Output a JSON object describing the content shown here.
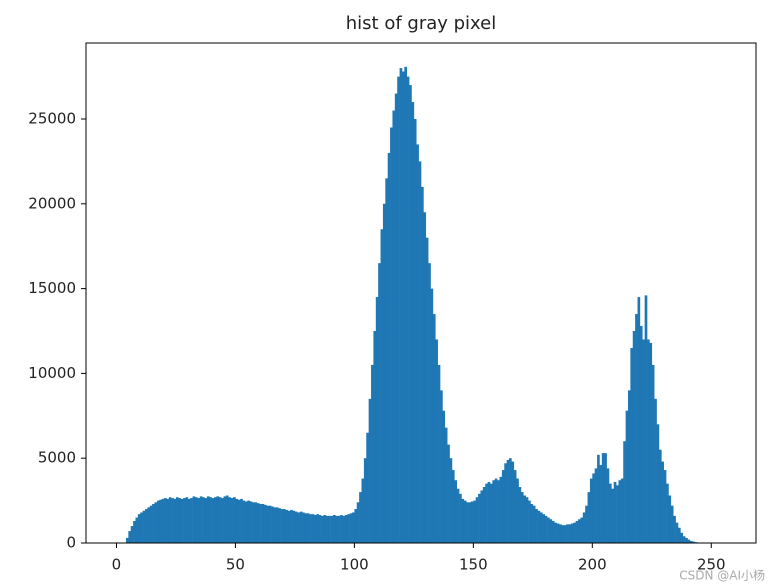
{
  "chart_data": {
    "type": "histogram",
    "title": "hist of gray pixel",
    "watermark": "CSDN @AI小杨",
    "color": "#1f77b4",
    "bins": [
      0,
      1,
      2,
      3,
      4,
      5,
      6,
      7,
      8,
      9,
      10,
      11,
      12,
      13,
      14,
      15,
      16,
      17,
      18,
      19,
      20,
      21,
      22,
      23,
      24,
      25,
      26,
      27,
      28,
      29,
      30,
      31,
      32,
      33,
      34,
      35,
      36,
      37,
      38,
      39,
      40,
      41,
      42,
      43,
      44,
      45,
      46,
      47,
      48,
      49,
      50,
      51,
      52,
      53,
      54,
      55,
      56,
      57,
      58,
      59,
      60,
      61,
      62,
      63,
      64,
      65,
      66,
      67,
      68,
      69,
      70,
      71,
      72,
      73,
      74,
      75,
      76,
      77,
      78,
      79,
      80,
      81,
      82,
      83,
      84,
      85,
      86,
      87,
      88,
      89,
      90,
      91,
      92,
      93,
      94,
      95,
      96,
      97,
      98,
      99,
      100,
      101,
      102,
      103,
      104,
      105,
      106,
      107,
      108,
      109,
      110,
      111,
      112,
      113,
      114,
      115,
      116,
      117,
      118,
      119,
      120,
      121,
      122,
      123,
      124,
      125,
      126,
      127,
      128,
      129,
      130,
      131,
      132,
      133,
      134,
      135,
      136,
      137,
      138,
      139,
      140,
      141,
      142,
      143,
      144,
      145,
      146,
      147,
      148,
      149,
      150,
      151,
      152,
      153,
      154,
      155,
      156,
      157,
      158,
      159,
      160,
      161,
      162,
      163,
      164,
      165,
      166,
      167,
      168,
      169,
      170,
      171,
      172,
      173,
      174,
      175,
      176,
      177,
      178,
      179,
      180,
      181,
      182,
      183,
      184,
      185,
      186,
      187,
      188,
      189,
      190,
      191,
      192,
      193,
      194,
      195,
      196,
      197,
      198,
      199,
      200,
      201,
      202,
      203,
      204,
      205,
      206,
      207,
      208,
      209,
      210,
      211,
      212,
      213,
      214,
      215,
      216,
      217,
      218,
      219,
      220,
      221,
      222,
      223,
      224,
      225,
      226,
      227,
      228,
      229,
      230,
      231,
      232,
      233,
      234,
      235,
      236,
      237,
      238,
      239,
      240,
      241,
      242,
      243,
      244,
      245,
      246,
      247,
      248,
      249,
      250,
      251,
      252,
      253,
      254,
      255,
      256
    ],
    "values": [
      0,
      0,
      0,
      0,
      300,
      700,
      1000,
      1300,
      1500,
      1700,
      1800,
      1900,
      2000,
      2100,
      2200,
      2300,
      2400,
      2500,
      2550,
      2600,
      2650,
      2600,
      2700,
      2650,
      2600,
      2700,
      2650,
      2600,
      2650,
      2700,
      2600,
      2650,
      2750,
      2700,
      2650,
      2750,
      2700,
      2650,
      2750,
      2700,
      2650,
      2700,
      2750,
      2700,
      2650,
      2750,
      2800,
      2700,
      2650,
      2700,
      2600,
      2550,
      2600,
      2500,
      2450,
      2500,
      2450,
      2400,
      2400,
      2350,
      2300,
      2300,
      2250,
      2200,
      2200,
      2150,
      2100,
      2100,
      2050,
      2000,
      2000,
      1950,
      1900,
      1950,
      1900,
      1850,
      1800,
      1850,
      1800,
      1750,
      1750,
      1700,
      1700,
      1650,
      1700,
      1650,
      1600,
      1650,
      1600,
      1600,
      1600,
      1650,
      1600,
      1600,
      1650,
      1600,
      1650,
      1700,
      1750,
      1800,
      2000,
      2400,
      3000,
      3800,
      5000,
      6500,
      8500,
      10500,
      12500,
      14500,
      16500,
      18500,
      20000,
      21500,
      23000,
      24500,
      25500,
      26500,
      27500,
      28000,
      27800,
      28077,
      27500,
      27000,
      26000,
      25000,
      23500,
      22500,
      21000,
      19500,
      18000,
      16500,
      15000,
      13500,
      12000,
      10500,
      9000,
      7800,
      6800,
      5800,
      5000,
      4300,
      3700,
      3200,
      2900,
      2600,
      2500,
      2400,
      2400,
      2450,
      2500,
      2700,
      2900,
      3100,
      3300,
      3500,
      3600,
      3500,
      3700,
      3800,
      3700,
      3900,
      4300,
      4700,
      4900,
      5000,
      4800,
      4300,
      3800,
      3300,
      3000,
      2800,
      2700,
      2500,
      2300,
      2200,
      2000,
      1900,
      1800,
      1700,
      1600,
      1500,
      1400,
      1300,
      1200,
      1150,
      1100,
      1050,
      1050,
      1100,
      1100,
      1150,
      1200,
      1300,
      1400,
      1500,
      1800,
      2200,
      3000,
      3800,
      4100,
      4400,
      5200,
      4600,
      5300,
      5300,
      4400,
      3500,
      3200,
      3600,
      3400,
      3700,
      3800,
      6000,
      7800,
      9000,
      11500,
      12500,
      13500,
      14500,
      12800,
      12000,
      14600,
      12000,
      11800,
      10500,
      8500,
      7000,
      5500,
      4800,
      4300,
      3500,
      2800,
      2200,
      1600,
      1200,
      900,
      600,
      400,
      300,
      200,
      120,
      80,
      50,
      30,
      20,
      0,
      0,
      0,
      0,
      0,
      0,
      0,
      0,
      0,
      0
    ],
    "xlim": [
      -12.8,
      268.8
    ],
    "xticks": [
      0,
      50,
      100,
      150,
      200,
      250
    ],
    "ylim": [
      0,
      29481
    ],
    "yticks": [
      0,
      5000,
      10000,
      15000,
      20000,
      25000
    ]
  }
}
